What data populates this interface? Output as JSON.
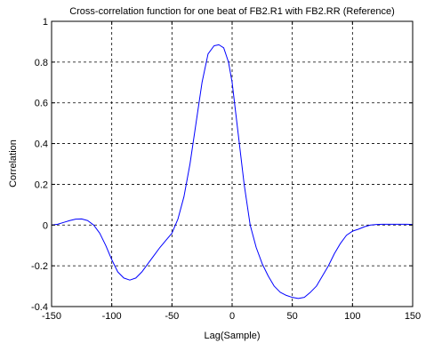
{
  "chart_data": {
    "type": "line",
    "title": "Cross-correlation function for one beat of FB2.R1 with FB2.RR (Reference)",
    "xlabel": "Lag(Sample)",
    "ylabel": "Correlation",
    "xlim": [
      -150,
      150
    ],
    "ylim": [
      -0.4,
      1
    ],
    "xticks": [
      -150,
      -100,
      -50,
      0,
      50,
      100,
      150
    ],
    "yticks": [
      -0.4,
      -0.2,
      0,
      0.2,
      0.4,
      0.6,
      0.8,
      1
    ],
    "grid": true,
    "grid_style": "dashed",
    "series": [
      {
        "color": "#0000ff",
        "x": [
          -150,
          -145,
          -140,
          -135,
          -130,
          -125,
          -120,
          -115,
          -110,
          -105,
          -100,
          -95,
          -90,
          -85,
          -80,
          -75,
          -70,
          -65,
          -60,
          -55,
          -50,
          -45,
          -40,
          -35,
          -30,
          -25,
          -20,
          -15,
          -11,
          -7,
          -3,
          0,
          5,
          10,
          15,
          20,
          25,
          30,
          35,
          40,
          45,
          50,
          55,
          60,
          65,
          70,
          75,
          80,
          85,
          90,
          95,
          100,
          105,
          110,
          115,
          120,
          125,
          130,
          135,
          140,
          145,
          150
        ],
        "y": [
          0.0,
          0.004,
          0.013,
          0.022,
          0.029,
          0.03,
          0.022,
          0.0,
          -0.04,
          -0.1,
          -0.17,
          -0.23,
          -0.26,
          -0.27,
          -0.26,
          -0.23,
          -0.19,
          -0.15,
          -0.11,
          -0.075,
          -0.04,
          0.03,
          0.14,
          0.3,
          0.5,
          0.7,
          0.84,
          0.88,
          0.885,
          0.87,
          0.8,
          0.7,
          0.45,
          0.2,
          0.0,
          -0.11,
          -0.19,
          -0.25,
          -0.3,
          -0.33,
          -0.345,
          -0.355,
          -0.36,
          -0.355,
          -0.33,
          -0.3,
          -0.25,
          -0.2,
          -0.14,
          -0.09,
          -0.05,
          -0.03,
          -0.02,
          -0.008,
          0.0,
          0.003,
          0.004,
          0.004,
          0.004,
          0.004,
          0.004,
          0.003
        ]
      }
    ]
  }
}
